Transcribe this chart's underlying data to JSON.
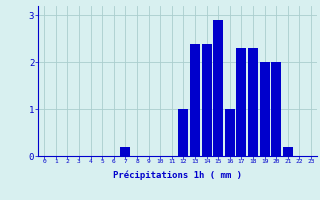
{
  "hours": [
    0,
    1,
    2,
    3,
    4,
    5,
    6,
    7,
    8,
    9,
    10,
    11,
    12,
    13,
    14,
    15,
    16,
    17,
    18,
    19,
    20,
    21,
    22,
    23
  ],
  "values": [
    0,
    0,
    0,
    0,
    0,
    0,
    0,
    0.2,
    0,
    0,
    0,
    0,
    1.0,
    2.4,
    2.4,
    2.9,
    1.0,
    2.3,
    2.3,
    2.0,
    2.0,
    0.2,
    0,
    0
  ],
  "bar_color": "#0000cc",
  "background_color": "#d8f0f0",
  "grid_color": "#aacece",
  "xlabel": "Précipitations 1h ( mm )",
  "xlabel_color": "#0000cc",
  "tick_color": "#0000cc",
  "ylim": [
    0,
    3.2
  ],
  "yticks": [
    0,
    1,
    2,
    3
  ],
  "xlim": [
    -0.5,
    23.5
  ],
  "figsize": [
    3.2,
    2.0
  ],
  "dpi": 100
}
